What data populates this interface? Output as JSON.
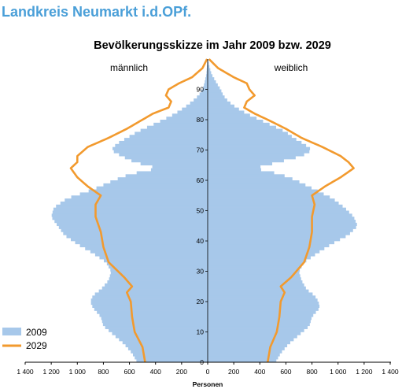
{
  "page": {
    "region_title": "Landkreis Neumarkt i.d.OPf."
  },
  "chart_data": {
    "type": "population-pyramid",
    "title": "Bevölkerungsskizze im Jahr 2009 bzw. 2029",
    "left_label": "männlich",
    "right_label": "weiblich",
    "xlabel": "Personen",
    "xlim": [
      -1400,
      1400
    ],
    "ylim": [
      0,
      100
    ],
    "x_ticks": [
      -1400,
      -1200,
      -1000,
      -800,
      -600,
      -400,
      -200,
      0,
      200,
      400,
      600,
      800,
      1000,
      1200,
      1400
    ],
    "x_tick_labels": [
      "1 400",
      "1 200",
      "1 000",
      "800",
      "600",
      "400",
      "200",
      "0",
      "200",
      "400",
      "600",
      "800",
      "1 000",
      "1 200",
      "1 400"
    ],
    "y_ticks": [
      0,
      10,
      20,
      30,
      40,
      50,
      60,
      70,
      80,
      90
    ],
    "y_tick_labels": [
      "0",
      "10",
      "20",
      "30",
      "40",
      "50",
      "60",
      "70",
      "80",
      "90"
    ],
    "legend_position": "bottom-left",
    "colors": {
      "bars_2009": "#a7c8ea",
      "line_2029": "#f29a2e"
    },
    "series": [
      {
        "name": "2009",
        "kind": "bars",
        "knots": [
          {
            "age": 0,
            "male": 540,
            "female": 520
          },
          {
            "age": 3,
            "male": 580,
            "female": 560
          },
          {
            "age": 6,
            "male": 640,
            "female": 620
          },
          {
            "age": 9,
            "male": 720,
            "female": 700
          },
          {
            "age": 12,
            "male": 800,
            "female": 780
          },
          {
            "age": 15,
            "male": 820,
            "female": 800
          },
          {
            "age": 18,
            "male": 880,
            "female": 860
          },
          {
            "age": 20,
            "male": 900,
            "female": 850
          },
          {
            "age": 22,
            "male": 880,
            "female": 820
          },
          {
            "age": 24,
            "male": 820,
            "female": 760
          },
          {
            "age": 27,
            "male": 760,
            "female": 720
          },
          {
            "age": 30,
            "male": 740,
            "female": 700
          },
          {
            "age": 33,
            "male": 780,
            "female": 740
          },
          {
            "age": 36,
            "male": 880,
            "female": 840
          },
          {
            "age": 39,
            "male": 1000,
            "female": 950
          },
          {
            "age": 42,
            "male": 1100,
            "female": 1080
          },
          {
            "age": 45,
            "male": 1150,
            "female": 1150
          },
          {
            "age": 48,
            "male": 1200,
            "female": 1120
          },
          {
            "age": 51,
            "male": 1180,
            "female": 1050
          },
          {
            "age": 54,
            "male": 1080,
            "female": 960
          },
          {
            "age": 57,
            "male": 880,
            "female": 820
          },
          {
            "age": 60,
            "male": 720,
            "female": 680
          },
          {
            "age": 62,
            "male": 600,
            "female": 560
          },
          {
            "age": 64,
            "male": 380,
            "female": 360
          },
          {
            "age": 66,
            "male": 560,
            "female": 540
          },
          {
            "age": 68,
            "male": 660,
            "female": 720
          },
          {
            "age": 70,
            "male": 740,
            "female": 800
          },
          {
            "age": 72,
            "male": 700,
            "female": 740
          },
          {
            "age": 74,
            "male": 620,
            "female": 660
          },
          {
            "age": 76,
            "male": 540,
            "female": 600
          },
          {
            "age": 78,
            "male": 440,
            "female": 500
          },
          {
            "age": 80,
            "male": 340,
            "female": 400
          },
          {
            "age": 82,
            "male": 250,
            "female": 300
          },
          {
            "age": 84,
            "male": 180,
            "female": 220
          },
          {
            "age": 86,
            "male": 120,
            "female": 160
          },
          {
            "age": 88,
            "male": 70,
            "female": 120
          },
          {
            "age": 90,
            "male": 40,
            "female": 100
          },
          {
            "age": 92,
            "male": 25,
            "female": 70
          },
          {
            "age": 95,
            "male": 10,
            "female": 30
          },
          {
            "age": 98,
            "male": 5,
            "female": 10
          },
          {
            "age": 100,
            "male": 2,
            "female": 3
          }
        ]
      },
      {
        "name": "2029",
        "kind": "line",
        "knots": [
          {
            "age": 0,
            "male": 480,
            "female": 460
          },
          {
            "age": 5,
            "male": 500,
            "female": 480
          },
          {
            "age": 10,
            "male": 560,
            "female": 530
          },
          {
            "age": 15,
            "male": 580,
            "female": 550
          },
          {
            "age": 20,
            "male": 590,
            "female": 560
          },
          {
            "age": 23,
            "male": 620,
            "female": 590
          },
          {
            "age": 25,
            "male": 580,
            "female": 560
          },
          {
            "age": 28,
            "male": 640,
            "female": 640
          },
          {
            "age": 33,
            "male": 760,
            "female": 740
          },
          {
            "age": 38,
            "male": 800,
            "female": 780
          },
          {
            "age": 43,
            "male": 820,
            "female": 800
          },
          {
            "age": 48,
            "male": 860,
            "female": 800
          },
          {
            "age": 52,
            "male": 860,
            "female": 820
          },
          {
            "age": 55,
            "male": 820,
            "female": 800
          },
          {
            "age": 58,
            "male": 920,
            "female": 900
          },
          {
            "age": 61,
            "male": 1000,
            "female": 1020
          },
          {
            "age": 64,
            "male": 1050,
            "female": 1120
          },
          {
            "age": 66,
            "male": 1000,
            "female": 1080
          },
          {
            "age": 68,
            "male": 1000,
            "female": 1020
          },
          {
            "age": 71,
            "male": 920,
            "female": 880
          },
          {
            "age": 74,
            "male": 760,
            "female": 720
          },
          {
            "age": 77,
            "male": 620,
            "female": 600
          },
          {
            "age": 80,
            "male": 500,
            "female": 460
          },
          {
            "age": 82,
            "male": 420,
            "female": 360
          },
          {
            "age": 84,
            "male": 300,
            "female": 280
          },
          {
            "age": 86,
            "male": 280,
            "female": 300
          },
          {
            "age": 88,
            "male": 320,
            "female": 360
          },
          {
            "age": 90,
            "male": 300,
            "female": 320
          },
          {
            "age": 92,
            "male": 220,
            "female": 300
          },
          {
            "age": 94,
            "male": 120,
            "female": 200
          },
          {
            "age": 97,
            "male": 40,
            "female": 80
          },
          {
            "age": 100,
            "male": 5,
            "female": 10
          }
        ]
      }
    ]
  }
}
